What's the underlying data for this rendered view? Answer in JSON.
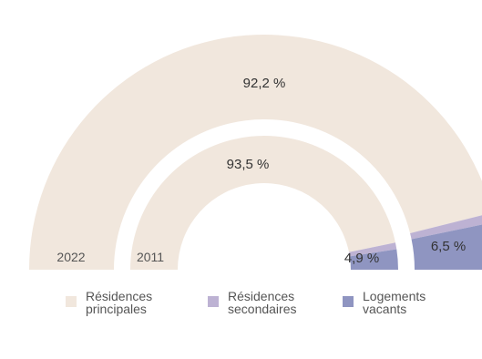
{
  "chart_data": {
    "type": "donut",
    "colors": {
      "residences_principales": "#F1E7DD",
      "residences_secondaires": "#BDB2D3",
      "logements_vacants": "#8F95C1"
    },
    "rings": [
      {
        "year": "2022",
        "values": [
          92.2,
          1.3,
          6.5
        ],
        "labels": [
          "92,2 %",
          "",
          "6,5 %"
        ]
      },
      {
        "year": "2011",
        "values": [
          93.5,
          1.6,
          4.9
        ],
        "labels": [
          "93,5 %",
          "",
          "4,9 %"
        ]
      }
    ],
    "legend": [
      {
        "key": "residences_principales",
        "lines": [
          "Résidences",
          "principales"
        ]
      },
      {
        "key": "residences_secondaires",
        "lines": [
          "Résidences",
          "secondaires"
        ]
      },
      {
        "key": "logements_vacants",
        "lines": [
          "Logements",
          "vacants"
        ]
      }
    ]
  }
}
